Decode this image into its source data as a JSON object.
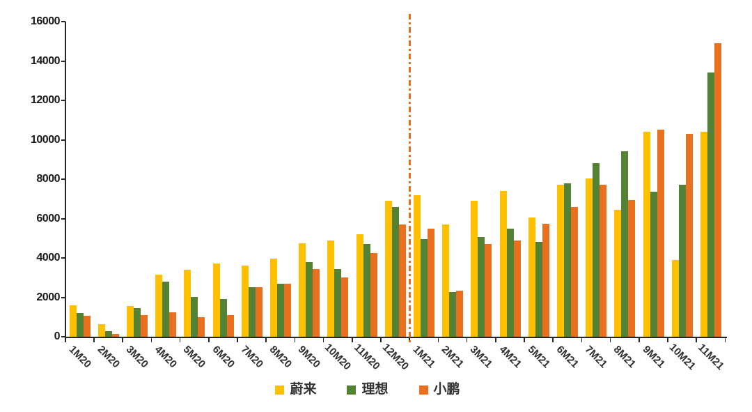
{
  "chart_data": {
    "type": "bar",
    "title": "",
    "xlabel": "",
    "ylabel": "",
    "categories": [
      "1M20",
      "2M20",
      "3M20",
      "4M20",
      "5M20",
      "6M20",
      "7M20",
      "8M20",
      "9M20",
      "10M20",
      "11M20",
      "12M20",
      "1M21",
      "2M21",
      "3M21",
      "4M21",
      "5M21",
      "6M21",
      "7M21",
      "8M21",
      "9M21",
      "10M21",
      "11M21"
    ],
    "series": [
      {
        "name": "蔚来",
        "color": "#FFC000",
        "values": [
          1600,
          650,
          1550,
          3150,
          3400,
          3700,
          3600,
          3950,
          4750,
          4900,
          5200,
          6900,
          7200,
          5700,
          6900,
          7400,
          6050,
          7700,
          8050,
          6450,
          10400,
          3900,
          10400
        ]
      },
      {
        "name": "理想",
        "color": "#548235",
        "values": [
          1200,
          300,
          1450,
          2800,
          2000,
          1900,
          2500,
          2700,
          3800,
          3450,
          4700,
          6600,
          4950,
          2250,
          5050,
          5500,
          4800,
          7800,
          8800,
          9400,
          7350,
          7700,
          13400
        ]
      },
      {
        "name": "小鹏",
        "color": "#E8701E",
        "values": [
          1050,
          150,
          1100,
          1250,
          1000,
          1100,
          2500,
          2700,
          3450,
          3000,
          4250,
          5700,
          5500,
          2350,
          4700,
          4900,
          5750,
          6600,
          7700,
          6950,
          10500,
          10300,
          14900
        ]
      }
    ],
    "ylim": [
      0,
      16000
    ],
    "ytick_interval": 2000,
    "yticks": [
      0,
      2000,
      4000,
      6000,
      8000,
      10000,
      12000,
      14000,
      16000
    ],
    "grid": false,
    "legend_position": "bottom",
    "separator": {
      "after_category": "12M20",
      "style": "dash-dot",
      "color": "#ED6A1E"
    },
    "axis_color": "#262626"
  }
}
